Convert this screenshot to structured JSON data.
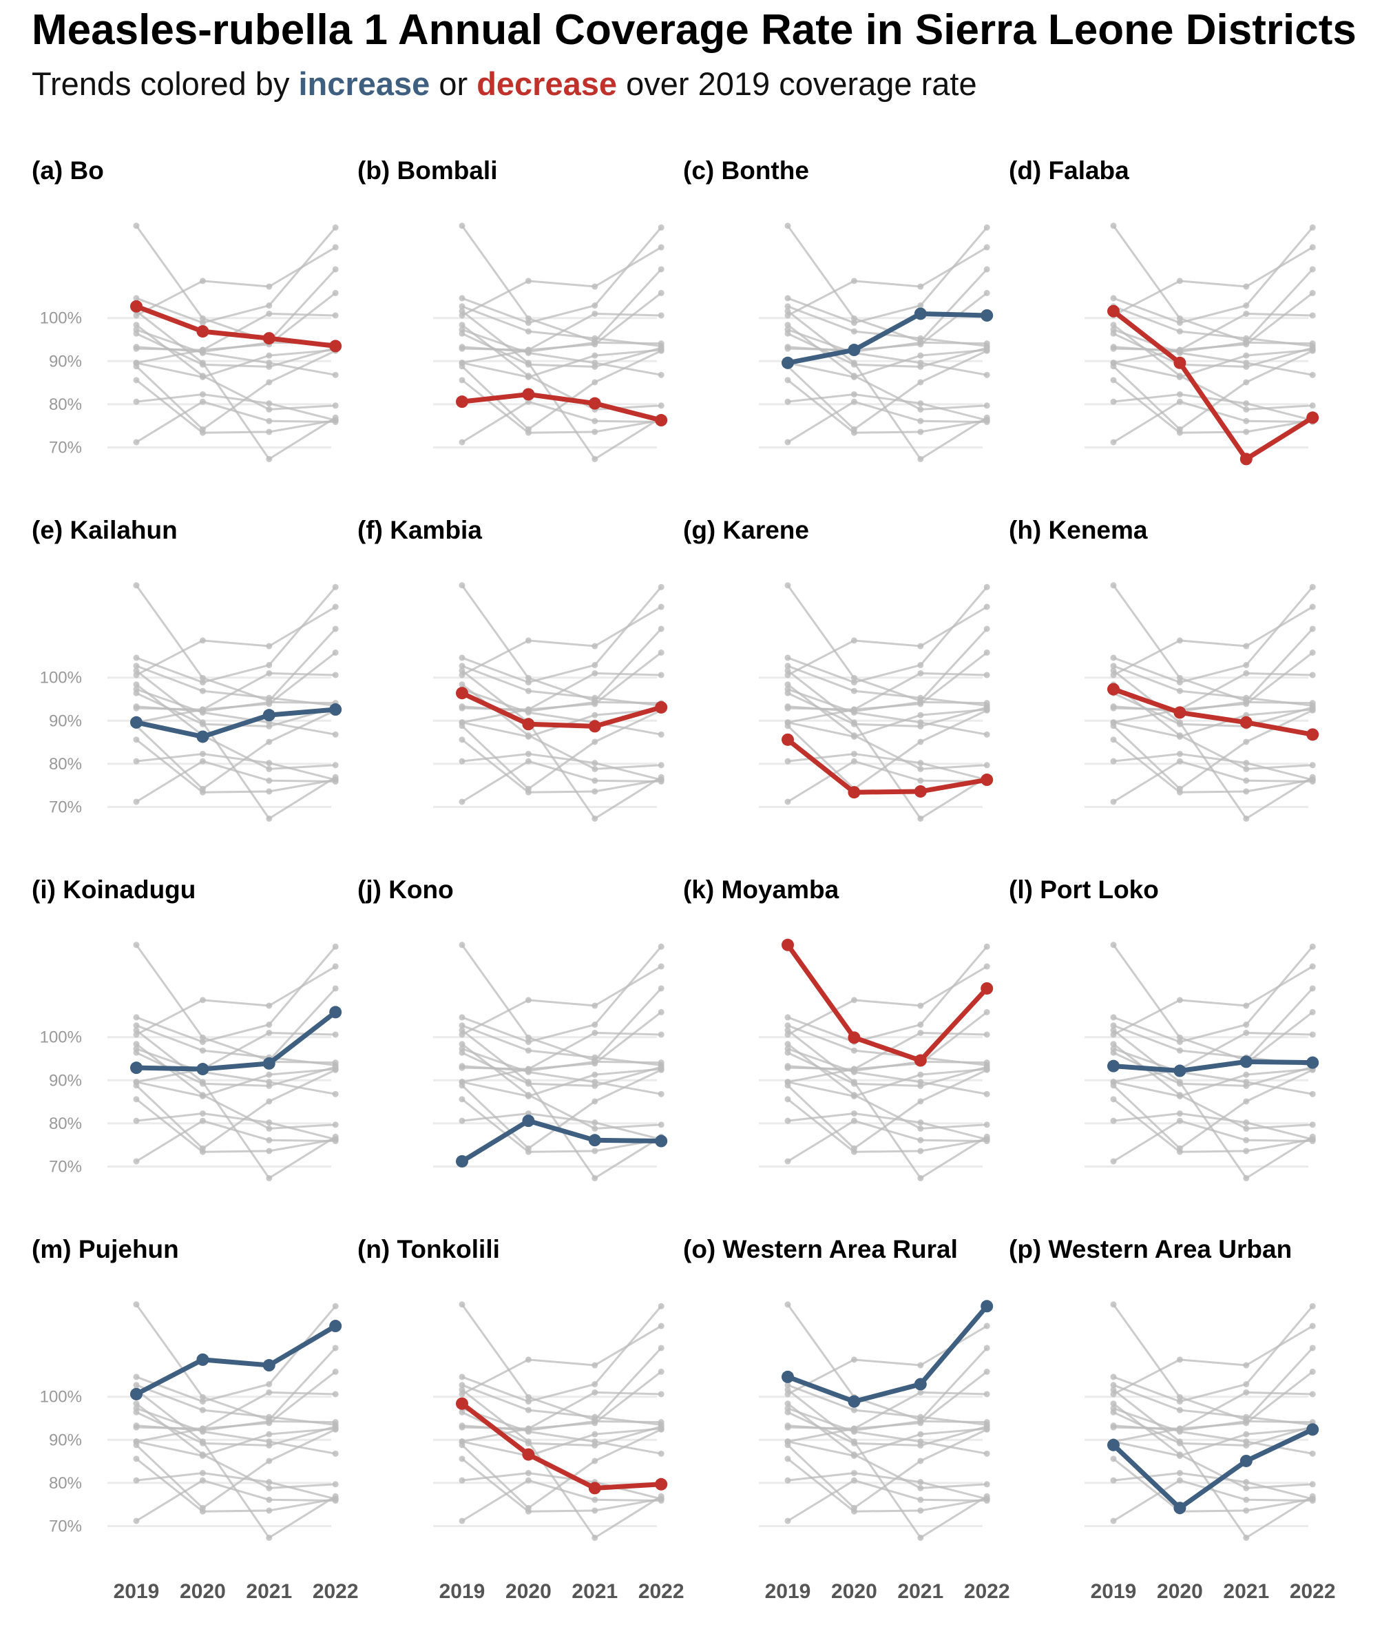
{
  "title": "Measles-rubella 1 Annual Coverage Rate in Sierra Leone Districts",
  "subtitle": {
    "prefix": "Trends colored by ",
    "increase_word": "increase",
    "middle": " or ",
    "decrease_word": "decrease",
    "suffix": " over 2019 coverage rate"
  },
  "colors": {
    "increase": "#3e5f80",
    "decrease": "#c0312b",
    "context": "#bbbbbb",
    "grid": "#ebebeb"
  },
  "chart_data": {
    "type": "line",
    "facets": "small multiples, 4 x 4",
    "x": [
      "2019",
      "2020",
      "2021",
      "2022"
    ],
    "ylim": [
      68,
      122
    ],
    "y_ticks": [
      70,
      80,
      90,
      100
    ],
    "y_tick_labels": [
      "70%",
      "80%",
      "90%",
      "100%"
    ],
    "grid": "horizontal",
    "series": [
      {
        "label": "(a) Bo",
        "values": [
          102.7,
          96.9,
          95.3,
          93.5
        ],
        "trend": "decrease"
      },
      {
        "label": "(b) Bombali",
        "values": [
          80.6,
          82.3,
          80.2,
          76.3
        ],
        "trend": "decrease"
      },
      {
        "label": "(c) Bonthe",
        "values": [
          89.6,
          92.6,
          101.0,
          100.6
        ],
        "trend": "increase"
      },
      {
        "label": "(d) Falaba",
        "values": [
          101.6,
          89.6,
          67.3,
          76.9
        ],
        "trend": "decrease"
      },
      {
        "label": "(e) Kailahun",
        "values": [
          89.6,
          86.3,
          91.3,
          92.6
        ],
        "trend": "increase"
      },
      {
        "label": "(f) Kambia",
        "values": [
          96.4,
          89.2,
          88.7,
          93.1
        ],
        "trend": "decrease"
      },
      {
        "label": "(g) Karene",
        "values": [
          85.6,
          73.4,
          73.6,
          76.3
        ],
        "trend": "decrease"
      },
      {
        "label": "(h) Kenema",
        "values": [
          97.3,
          91.9,
          89.6,
          86.8
        ],
        "trend": "decrease"
      },
      {
        "label": "(i) Koinadugu",
        "values": [
          92.9,
          92.6,
          93.9,
          105.8
        ],
        "trend": "increase"
      },
      {
        "label": "(j) Kono",
        "values": [
          71.2,
          80.6,
          76.1,
          75.9
        ],
        "trend": "increase"
      },
      {
        "label": "(k) Moyamba",
        "values": [
          121.4,
          99.9,
          94.6,
          111.3
        ],
        "trend": "decrease"
      },
      {
        "label": "(l) Port Loko",
        "values": [
          93.3,
          92.2,
          94.3,
          94.1
        ],
        "trend": "increase"
      },
      {
        "label": "(m) Pujehun",
        "values": [
          100.6,
          108.6,
          107.3,
          116.4
        ],
        "trend": "increase"
      },
      {
        "label": "(n) Tonkolili",
        "values": [
          98.4,
          86.6,
          78.8,
          79.7
        ],
        "trend": "decrease"
      },
      {
        "label": "(o) Western Area Rural",
        "values": [
          104.6,
          98.9,
          102.9,
          121.0
        ],
        "trend": "increase"
      },
      {
        "label": "(p) Western Area Urban",
        "values": [
          88.8,
          74.2,
          85.1,
          92.4
        ],
        "trend": "increase"
      }
    ]
  }
}
